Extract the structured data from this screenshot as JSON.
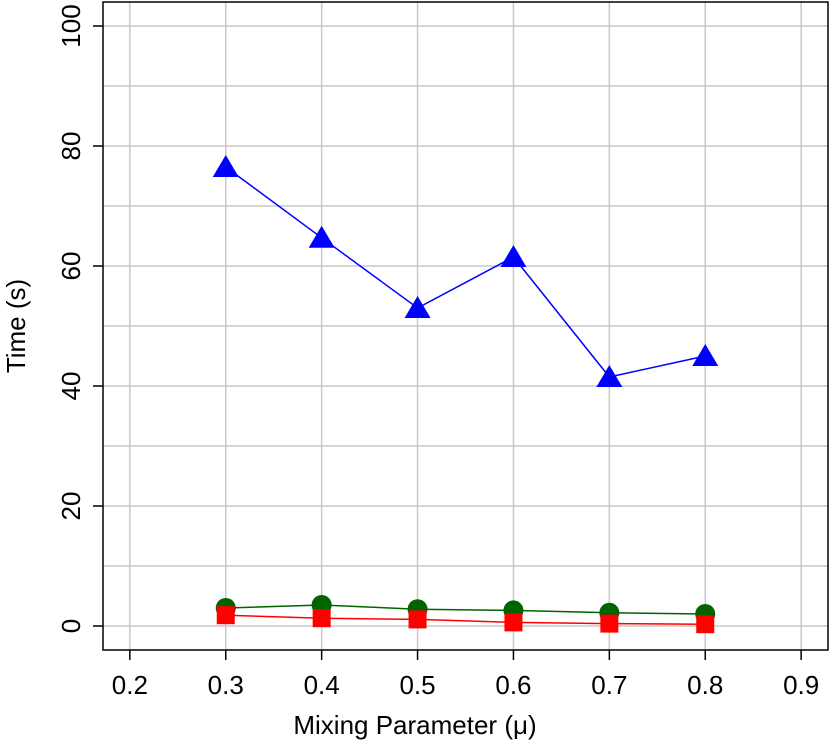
{
  "chart_data": {
    "type": "line",
    "xlabel": "Mixing Parameter (μ)",
    "ylabel": "Time (s)",
    "x": [
      0.3,
      0.4,
      0.5,
      0.6,
      0.7,
      0.8
    ],
    "series": [
      {
        "color": "#0000ff",
        "marker": "triangle",
        "values": [
          76.5,
          64.7,
          53,
          61.5,
          41.5,
          45
        ]
      },
      {
        "color": "#006400",
        "marker": "circle",
        "values": [
          3.0,
          3.5,
          2.8,
          2.6,
          2.2,
          2.0
        ]
      },
      {
        "color": "#ff0000",
        "marker": "square",
        "values": [
          1.8,
          1.3,
          1.1,
          0.6,
          0.4,
          0.3
        ]
      }
    ],
    "xlim": [
      0.172,
      0.928
    ],
    "xticks": [
      0.2,
      0.3,
      0.4,
      0.5,
      0.6,
      0.7,
      0.8,
      0.9
    ],
    "ylim": [
      -4,
      104
    ],
    "yticks": [
      0,
      20,
      40,
      60,
      80,
      100
    ],
    "yminor": [
      10,
      30,
      50,
      70,
      90
    ],
    "grid": true
  }
}
